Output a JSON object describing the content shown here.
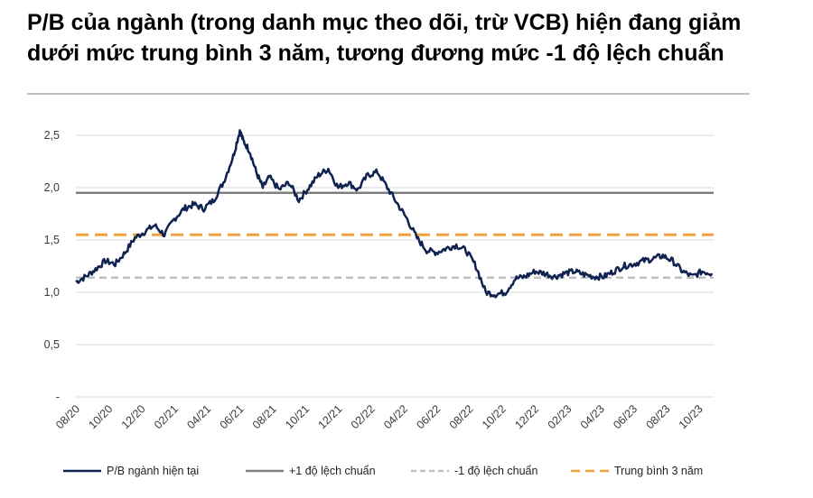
{
  "title": "P/B của ngành (trong danh mục theo dõi, trừ VCB) hiện đang giảm dưới mức trung bình 3 năm, tương đương mức -1 độ lệch chuẩn",
  "chart_data": {
    "type": "line",
    "title": "P/B của ngành (trong danh mục theo dõi, trừ VCB) hiện đang giảm dưới mức trung bình 3 năm, tương đương mức -1 độ lệch chuẩn",
    "xlabel": "",
    "ylabel": "",
    "ylim": [
      0,
      2.5
    ],
    "y_ticks": [
      "-",
      "0,5",
      "1,0",
      "1,5",
      "2,0",
      "2,5"
    ],
    "x_ticks": [
      "08/20",
      "10/20",
      "12/20",
      "02/21",
      "04/21",
      "06/21",
      "08/21",
      "10/21",
      "12/21",
      "02/22",
      "04/22",
      "06/22",
      "08/22",
      "10/22",
      "12/22",
      "02/23",
      "04/23",
      "06/23",
      "08/23",
      "10/23"
    ],
    "grid": true,
    "legend_position": "bottom",
    "series": [
      {
        "name": "P/B ngành hiện tại",
        "color": "#0f2250",
        "style": "solid",
        "x": [
          0,
          0.3,
          0.6,
          0.9,
          1.2,
          1.5,
          1.8,
          2.1,
          2.4,
          2.7,
          3.0,
          3.3,
          3.6,
          3.9,
          4.2,
          4.5,
          4.8,
          5.0,
          5.1,
          5.3,
          5.5,
          5.7,
          5.9,
          6.2,
          6.5,
          6.8,
          7.1,
          7.4,
          7.7,
          8.0,
          8.3,
          8.6,
          8.9,
          9.2,
          9.5,
          9.8,
          10.1,
          10.4,
          10.7,
          11.0,
          11.3,
          11.6,
          11.9,
          12.2,
          12.5,
          12.8,
          13.1,
          13.4,
          13.7,
          14.0,
          14.3,
          14.6,
          14.9,
          15.2,
          15.5,
          15.8,
          16.1,
          16.4,
          16.7,
          17.0,
          17.3,
          17.6,
          17.9,
          18.2,
          18.5,
          18.8,
          19.1,
          19.4
        ],
        "y": [
          1.1,
          1.15,
          1.22,
          1.3,
          1.27,
          1.38,
          1.52,
          1.58,
          1.64,
          1.55,
          1.7,
          1.8,
          1.84,
          1.8,
          1.88,
          2.05,
          2.3,
          2.55,
          2.45,
          2.35,
          2.15,
          2.0,
          2.1,
          1.98,
          2.05,
          1.88,
          2.0,
          2.12,
          2.18,
          2.0,
          2.05,
          1.98,
          2.12,
          2.15,
          2.0,
          1.85,
          1.7,
          1.52,
          1.4,
          1.38,
          1.42,
          1.45,
          1.4,
          1.25,
          1.0,
          0.98,
          1.0,
          1.13,
          1.15,
          1.2,
          1.18,
          1.15,
          1.18,
          1.2,
          1.17,
          1.15,
          1.15,
          1.2,
          1.25,
          1.27,
          1.3,
          1.32,
          1.35,
          1.3,
          1.2,
          1.15,
          1.2,
          1.18
        ]
      },
      {
        "name": "+1 độ lệch chuẩn",
        "color": "#7f7f7f",
        "style": "solid",
        "value": 1.95
      },
      {
        "name": "-1 độ lệch chuẩn",
        "color": "#bfbfbf",
        "style": "dashed",
        "value": 1.14
      },
      {
        "name": "Trung bình 3 năm",
        "color": "#f0a040",
        "style": "dashed",
        "value": 1.55
      }
    ]
  }
}
